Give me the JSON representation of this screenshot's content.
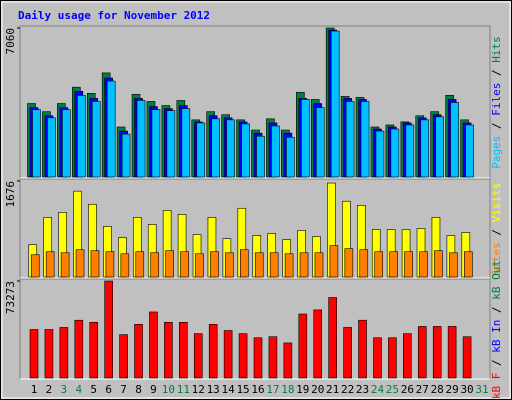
{
  "chart_data": [
    {
      "type": "bar",
      "title": "Daily usage for November 2012",
      "ylim": [
        0,
        7060
      ],
      "yticks": [
        7060
      ],
      "legend_separator": " / ",
      "series": [
        {
          "name": "Pages",
          "color": "#00c0ff",
          "values": [
            3191,
            2805,
            3191,
            3869,
            3579,
            4546,
            2031,
            3627,
            3192,
            3143,
            3240,
            2563,
            2757,
            2708,
            2515,
            1934,
            2418,
            1886,
            3675,
            3289,
            6916,
            3579,
            3579,
            2176,
            2273,
            2466,
            2708,
            2853,
            3530,
            2466,
            0
          ]
        },
        {
          "name": "Files",
          "color": "#0000ff",
          "values": [
            3288,
            2902,
            3288,
            4062,
            3724,
            4691,
            2176,
            3724,
            3337,
            3240,
            3385,
            2611,
            2902,
            2805,
            2611,
            2079,
            2563,
            2079,
            3724,
            3482,
            6964,
            3724,
            3675,
            2273,
            2370,
            2563,
            2805,
            2950,
            3675,
            2563,
            0
          ]
        },
        {
          "name": "Hits",
          "color": "#008040",
          "values": [
            3482,
            3095,
            3482,
            4256,
            3966,
            4933,
            2370,
            3917,
            3579,
            3385,
            3627,
            2708,
            3095,
            2950,
            2708,
            2225,
            2757,
            2225,
            4014,
            3675,
            7060,
            3820,
            3772,
            2370,
            2466,
            2611,
            2902,
            3095,
            3869,
            2708,
            0
          ]
        }
      ]
    },
    {
      "type": "bar",
      "ylim": [
        0,
        1676
      ],
      "yticks": [
        1676
      ],
      "legend_separator": " / ",
      "series": [
        {
          "name": "Sites",
          "color": "#ff8000",
          "values": [
            388,
            441,
            423,
            476,
            459,
            441,
            405,
            441,
            423,
            459,
            441,
            405,
            441,
            423,
            476,
            423,
            423,
            405,
            423,
            423,
            547,
            494,
            476,
            441,
            441,
            441,
            441,
            459,
            423,
            441,
            0
          ]
        },
        {
          "name": "Visits",
          "color": "#ffff00",
          "values": [
            565,
            1041,
            1129,
            1499,
            1270,
            882,
            688,
            1041,
            917,
            1164,
            1094,
            741,
            1041,
            670,
            1200,
            723,
            759,
            653,
            811,
            706,
            1640,
            1323,
            1252,
            829,
            829,
            829,
            847,
            1041,
            723,
            776,
            0
          ]
        }
      ]
    },
    {
      "type": "bar",
      "ylim": [
        0,
        73273
      ],
      "yticks": [
        73273
      ],
      "legend_separator": " / ",
      "categories": [
        "1",
        "2",
        "3",
        "4",
        "5",
        "6",
        "7",
        "8",
        "9",
        "10",
        "11",
        "12",
        "13",
        "14",
        "15",
        "16",
        "17",
        "18",
        "19",
        "20",
        "21",
        "22",
        "23",
        "24",
        "25",
        "26",
        "27",
        "28",
        "29",
        "30",
        "31"
      ],
      "category_colors": [
        "#000000",
        "#000000",
        "#008040",
        "#008040",
        "#000000",
        "#000000",
        "#000000",
        "#000000",
        "#000000",
        "#008040",
        "#008040",
        "#000000",
        "#000000",
        "#000000",
        "#000000",
        "#000000",
        "#008040",
        "#008040",
        "#000000",
        "#000000",
        "#000000",
        "#000000",
        "#000000",
        "#008040",
        "#008040",
        "#000000",
        "#000000",
        "#000000",
        "#000000",
        "#000000",
        "#008040"
      ],
      "series": [
        {
          "name": "kB F",
          "color": "#ff0000",
          "values": [
            36637,
            36637,
            38196,
            43652,
            42093,
            73273,
            32739,
            40534,
            49888,
            42093,
            42093,
            33519,
            40534,
            35857,
            33519,
            30400,
            31180,
            26503,
            48329,
            51447,
            60801,
            38196,
            43652,
            30400,
            30400,
            33519,
            38975,
            38975,
            38975,
            31180,
            0
          ]
        },
        {
          "name": "kB In",
          "color": "#0000ff",
          "values": [
            null,
            null,
            null,
            null,
            null,
            null,
            null,
            null,
            null,
            null,
            null,
            null,
            null,
            null,
            null,
            null,
            null,
            null,
            null,
            null,
            null,
            null,
            null,
            null,
            null,
            null,
            null,
            null,
            null,
            null,
            null
          ]
        },
        {
          "name": "kB Out",
          "color": "#008040",
          "values": [
            null,
            null,
            null,
            null,
            null,
            null,
            null,
            null,
            null,
            null,
            null,
            null,
            null,
            null,
            null,
            null,
            null,
            null,
            null,
            null,
            null,
            null,
            null,
            null,
            null,
            null,
            null,
            null,
            null,
            null,
            null
          ]
        }
      ]
    }
  ]
}
